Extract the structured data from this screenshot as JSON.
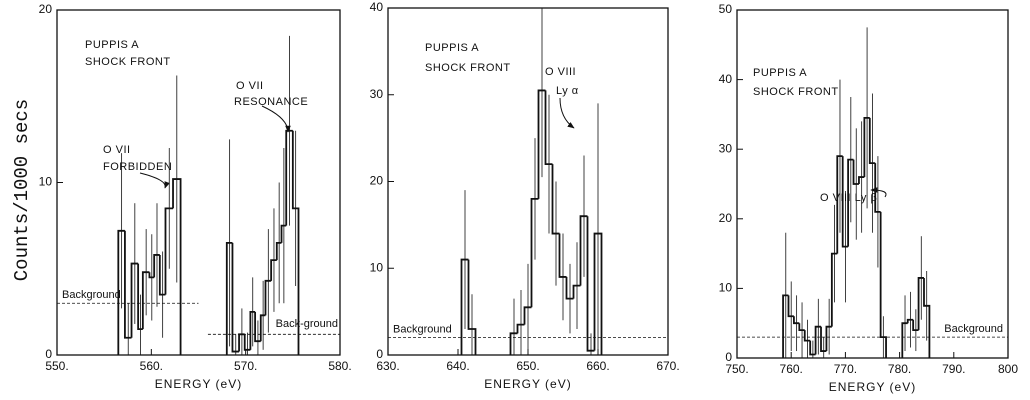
{
  "chart_data": [
    {
      "type": "histogram",
      "y_label": "Counts/1000 secs",
      "x_label": "ENERGY (eV)",
      "xlim": [
        550,
        580
      ],
      "xticks": [
        {
          "value": 550,
          "label": "550."
        },
        {
          "value": 560,
          "label": "560."
        },
        {
          "value": 570,
          "label": "570."
        },
        {
          "value": 580,
          "label": "580."
        }
      ],
      "ylim": [
        0,
        20
      ],
      "yticks": [
        0,
        10,
        20
      ],
      "bins": [
        556.5,
        557.2,
        557.9,
        558.6,
        559.1,
        559.8,
        560.3,
        560.9,
        561.5,
        562.3,
        563.1,
        568.0,
        568.6,
        569.3,
        569.9,
        570.5,
        571.0,
        571.6,
        572.1,
        572.7,
        573.3,
        573.8,
        574.3,
        575.0,
        575.6
      ],
      "values": [
        7.2,
        1.0,
        5.3,
        1.5,
        4.8,
        4.5,
        5.8,
        3.5,
        8.5,
        10.2,
        null,
        6.5,
        0.2,
        1.2,
        0.3,
        2.5,
        0.8,
        2.3,
        4.3,
        5.5,
        6.5,
        7.5,
        13,
        8.5
      ],
      "errors": [
        4.5,
        2,
        3.5,
        2,
        2.5,
        2.5,
        3,
        2.5,
        3.5,
        6,
        null,
        6,
        1,
        1.5,
        1,
        2,
        1.2,
        2,
        3,
        3,
        3.5,
        4.5,
        5.5,
        4.5
      ],
      "background": [
        {
          "label": "Background",
          "value": 3,
          "xrange": [
            550,
            565
          ]
        },
        {
          "label": "Back-ground",
          "value": 1.2,
          "xrange": [
            566,
            580
          ]
        }
      ],
      "annotations": [
        "PUPPIS A",
        "SHOCK FRONT",
        "O VII",
        "FORBIDDEN",
        "O VII",
        "RESONANCE"
      ],
      "color": "#111111"
    },
    {
      "type": "histogram",
      "x_label": "ENERGY (eV)",
      "xlim": [
        630,
        670
      ],
      "xticks": [
        {
          "value": 630,
          "label": "630."
        },
        {
          "value": 640,
          "label": "640."
        },
        {
          "value": 650,
          "label": "650."
        },
        {
          "value": 660,
          "label": "660."
        },
        {
          "value": 670,
          "label": "670."
        }
      ],
      "ylim": [
        0,
        40
      ],
      "yticks": [
        0,
        10,
        20,
        30,
        40
      ],
      "bins": [
        640.5,
        641.5,
        642.5,
        647.5,
        648.5,
        649.5,
        650.5,
        651.5,
        652.5,
        653.5,
        654.5,
        655.5,
        656.5,
        657.5,
        658.5,
        659.5,
        660.5
      ],
      "values": [
        11,
        3,
        null,
        2.5,
        3.5,
        5.5,
        18,
        30.5,
        22,
        14,
        9,
        6.5,
        8,
        16,
        0.5,
        14
      ],
      "errors": [
        8,
        4,
        null,
        4,
        4,
        5,
        7,
        10,
        8,
        6,
        5,
        4,
        5,
        7,
        2,
        15
      ],
      "background": [
        {
          "label": "Background",
          "value": 2,
          "xrange": [
            630,
            670
          ]
        }
      ],
      "annotations": [
        "PUPPIS A",
        "SHOCK FRONT",
        "O VIII",
        "Ly α"
      ],
      "color": "#111111"
    },
    {
      "type": "histogram",
      "x_label": "ENERGY (eV)",
      "xlim": [
        750,
        800
      ],
      "xticks": [
        {
          "value": 750,
          "label": "750."
        },
        {
          "value": 760,
          "label": "760."
        },
        {
          "value": 770,
          "label": "770."
        },
        {
          "value": 780,
          "label": "780."
        },
        {
          "value": 790,
          "label": "790."
        },
        800
      ],
      "ylim": [
        0,
        50
      ],
      "yticks": [
        0,
        10,
        20,
        30,
        40,
        50
      ],
      "bins": [
        758.5,
        759.5,
        760.5,
        761.5,
        762.5,
        763.5,
        764.5,
        765.5,
        766.5,
        767.5,
        768.5,
        769.5,
        770.5,
        771.5,
        772.5,
        773.5,
        774.5,
        775.5,
        776.5,
        777.5,
        780.5,
        781.5,
        782.5,
        783.5,
        784.5,
        785.5
      ],
      "values": [
        9,
        6,
        5,
        4,
        2.5,
        0.5,
        4.5,
        1,
        4.5,
        15,
        29,
        16,
        28.5,
        25,
        26,
        34.5,
        28,
        21,
        3,
        null,
        5,
        5.5,
        4,
        11.5,
        7.5
      ],
      "errors": [
        9,
        5,
        4,
        4,
        3,
        2,
        4,
        2,
        4,
        7,
        11,
        8,
        9,
        8,
        8,
        13,
        10,
        8,
        3,
        null,
        4,
        4,
        3,
        6,
        5
      ],
      "background": [
        {
          "label": "Background",
          "value": 3,
          "xrange": [
            750,
            800
          ]
        }
      ],
      "annotations": [
        "PUPPIS A",
        "SHOCK FRONT",
        "O VIII Ly β"
      ],
      "color": "#111111"
    }
  ]
}
